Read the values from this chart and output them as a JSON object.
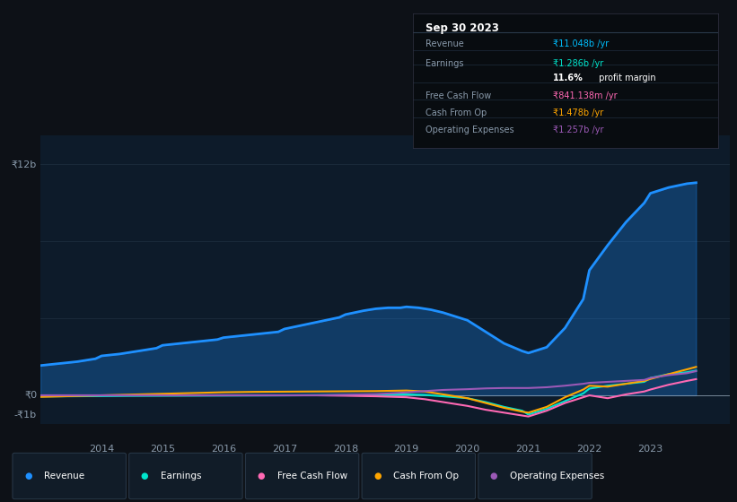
{
  "bg_color": "#0d1117",
  "chart_bg": "#0d1b2a",
  "grid_color": "#1e3a4a",
  "ylim": [
    -1500000000.0,
    13500000000.0
  ],
  "xlim": [
    2013.0,
    2024.3
  ],
  "x_ticks": [
    2014,
    2015,
    2016,
    2017,
    2018,
    2019,
    2020,
    2021,
    2022,
    2023
  ],
  "info_title": "Sep 30 2023",
  "legend": [
    {
      "label": "Revenue",
      "color": "#1e90ff"
    },
    {
      "label": "Earnings",
      "color": "#00e5cc"
    },
    {
      "label": "Free Cash Flow",
      "color": "#ff69b4"
    },
    {
      "label": "Cash From Op",
      "color": "#ffa500"
    },
    {
      "label": "Operating Expenses",
      "color": "#9b59b6"
    }
  ],
  "revenue_x": [
    2013.0,
    2013.3,
    2013.6,
    2013.9,
    2014.0,
    2014.3,
    2014.6,
    2014.9,
    2015.0,
    2015.3,
    2015.6,
    2015.9,
    2016.0,
    2016.3,
    2016.6,
    2016.9,
    2017.0,
    2017.3,
    2017.6,
    2017.9,
    2018.0,
    2018.15,
    2018.3,
    2018.5,
    2018.7,
    2018.9,
    2019.0,
    2019.2,
    2019.4,
    2019.6,
    2019.8,
    2020.0,
    2020.3,
    2020.6,
    2020.9,
    2021.0,
    2021.3,
    2021.6,
    2021.9,
    2022.0,
    2022.3,
    2022.6,
    2022.9,
    2023.0,
    2023.3,
    2023.6,
    2023.75
  ],
  "revenue_y": [
    1550000000.0,
    1650000000.0,
    1750000000.0,
    1900000000.0,
    2050000000.0,
    2150000000.0,
    2300000000.0,
    2450000000.0,
    2600000000.0,
    2700000000.0,
    2800000000.0,
    2900000000.0,
    3000000000.0,
    3100000000.0,
    3200000000.0,
    3300000000.0,
    3450000000.0,
    3650000000.0,
    3850000000.0,
    4050000000.0,
    4200000000.0,
    4300000000.0,
    4400000000.0,
    4500000000.0,
    4550000000.0,
    4550000000.0,
    4600000000.0,
    4550000000.0,
    4450000000.0,
    4300000000.0,
    4100000000.0,
    3900000000.0,
    3300000000.0,
    2700000000.0,
    2300000000.0,
    2200000000.0,
    2500000000.0,
    3500000000.0,
    5000000000.0,
    6500000000.0,
    7800000000.0,
    9000000000.0,
    10000000000.0,
    10500000000.0,
    10800000000.0,
    11000000000.0,
    11050000000.0
  ],
  "earnings_x": [
    2013.0,
    2013.5,
    2014.0,
    2014.5,
    2015.0,
    2015.5,
    2016.0,
    2016.5,
    2017.0,
    2017.5,
    2018.0,
    2018.3,
    2018.6,
    2019.0,
    2019.3,
    2019.6,
    2020.0,
    2020.3,
    2020.6,
    2020.9,
    2021.0,
    2021.3,
    2021.6,
    2021.9,
    2022.0,
    2022.3,
    2022.6,
    2022.9,
    2023.0,
    2023.3,
    2023.6,
    2023.75
  ],
  "earnings_y": [
    -60000000.0,
    -50000000.0,
    -40000000.0,
    -30000000.0,
    -25000000.0,
    -20000000.0,
    -15000000.0,
    -10000000.0,
    -5000000.0,
    5000000.0,
    10000000.0,
    20000000.0,
    30000000.0,
    50000000.0,
    20000000.0,
    -50000000.0,
    -150000000.0,
    -350000000.0,
    -600000000.0,
    -800000000.0,
    -1000000000.0,
    -700000000.0,
    -300000000.0,
    100000000.0,
    350000000.0,
    500000000.0,
    600000000.0,
    700000000.0,
    900000000.0,
    1100000000.0,
    1200000000.0,
    1286000000.0
  ],
  "fcf_x": [
    2013.0,
    2013.5,
    2014.0,
    2014.5,
    2015.0,
    2015.5,
    2016.0,
    2016.5,
    2017.0,
    2017.5,
    2018.0,
    2018.5,
    2019.0,
    2019.3,
    2019.6,
    2020.0,
    2020.3,
    2020.6,
    2020.9,
    2021.0,
    2021.3,
    2021.6,
    2021.9,
    2022.0,
    2022.3,
    2022.6,
    2022.9,
    2023.0,
    2023.3,
    2023.6,
    2023.75
  ],
  "fcf_y": [
    0.0,
    0.0,
    0.0,
    0.0,
    0.0,
    0.0,
    0.0,
    0.0,
    0.0,
    0.0,
    -20000000.0,
    -50000000.0,
    -100000000.0,
    -200000000.0,
    -350000000.0,
    -550000000.0,
    -750000000.0,
    -900000000.0,
    -1050000000.0,
    -1100000000.0,
    -800000000.0,
    -400000000.0,
    -100000000.0,
    0.0,
    -150000000.0,
    50000000.0,
    200000000.0,
    300000000.0,
    550000000.0,
    750000000.0,
    841000000.0
  ],
  "cashop_x": [
    2013.0,
    2013.5,
    2014.0,
    2014.5,
    2015.0,
    2015.5,
    2016.0,
    2016.5,
    2017.0,
    2017.5,
    2018.0,
    2018.5,
    2019.0,
    2019.3,
    2019.6,
    2020.0,
    2020.3,
    2020.6,
    2020.9,
    2021.0,
    2021.3,
    2021.6,
    2021.9,
    2022.0,
    2022.3,
    2022.6,
    2022.9,
    2023.0,
    2023.3,
    2023.6,
    2023.75
  ],
  "cashop_y": [
    -80000000.0,
    -40000000.0,
    0.0,
    40000000.0,
    80000000.0,
    120000000.0,
    160000000.0,
    180000000.0,
    190000000.0,
    200000000.0,
    210000000.0,
    220000000.0,
    250000000.0,
    200000000.0,
    50000000.0,
    -150000000.0,
    -400000000.0,
    -650000000.0,
    -850000000.0,
    -900000000.0,
    -600000000.0,
    -100000000.0,
    300000000.0,
    500000000.0,
    450000000.0,
    600000000.0,
    750000000.0,
    850000000.0,
    1100000000.0,
    1350000000.0,
    1478000000.0
  ],
  "opex_x": [
    2013.0,
    2013.5,
    2014.0,
    2014.5,
    2015.0,
    2015.5,
    2016.0,
    2016.5,
    2017.0,
    2017.5,
    2018.0,
    2018.5,
    2019.0,
    2019.3,
    2019.6,
    2020.0,
    2020.3,
    2020.6,
    2020.9,
    2021.0,
    2021.3,
    2021.6,
    2021.9,
    2022.0,
    2022.3,
    2022.6,
    2022.9,
    2023.0,
    2023.3,
    2023.6,
    2023.75
  ],
  "opex_y": [
    0.0,
    0.0,
    0.0,
    0.0,
    0.0,
    0.0,
    0.0,
    0.0,
    0.0,
    0.0,
    30000000.0,
    60000000.0,
    150000000.0,
    220000000.0,
    280000000.0,
    320000000.0,
    360000000.0,
    380000000.0,
    380000000.0,
    380000000.0,
    420000000.0,
    500000000.0,
    600000000.0,
    650000000.0,
    700000000.0,
    750000000.0,
    800000000.0,
    900000000.0,
    1050000000.0,
    1150000000.0,
    1257000000.0
  ]
}
